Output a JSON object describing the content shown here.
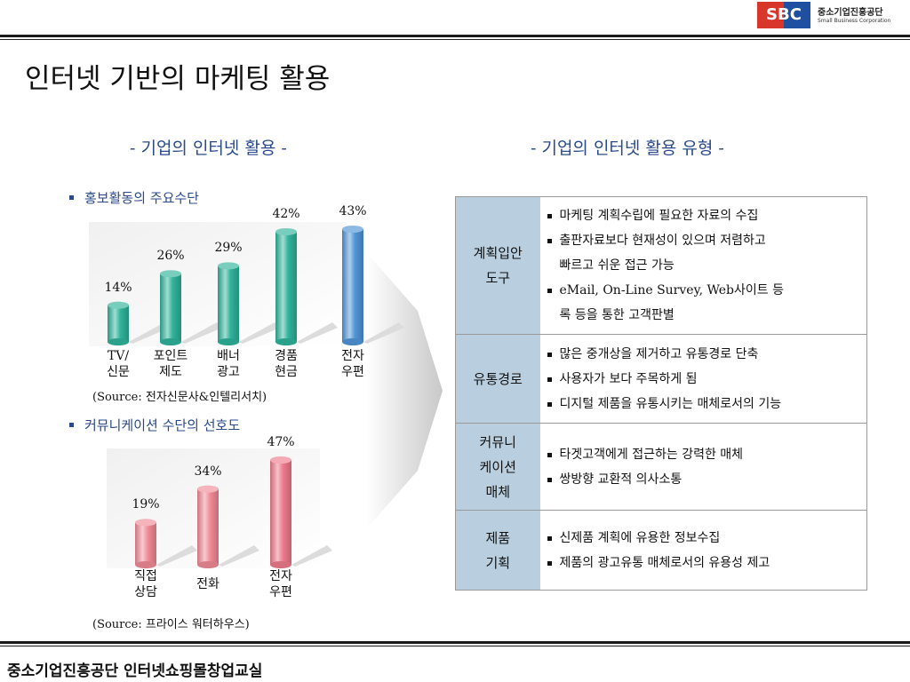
{
  "logo": {
    "abbr": "SBC",
    "name_kr": "중소기업진흥공단",
    "name_en": "Small Business Corporation"
  },
  "page_title": "인터넷 기반의 마케팅 활용",
  "left_section_title": "- 기업의 인터넷 활용 -",
  "right_section_title": "- 기업의 인터넷 활용 유형 -",
  "chart_data": [
    {
      "type": "bar",
      "title": "홍보활동의 주요수단",
      "categories": [
        "TV/ 신문",
        "포인트 제도",
        "배너 광고",
        "경품 현금",
        "전자 우편"
      ],
      "category_lines": [
        [
          "TV/",
          "신문"
        ],
        [
          "포인트",
          "제도"
        ],
        [
          "배너",
          "광고"
        ],
        [
          "경품",
          "현금"
        ],
        [
          "전자",
          "우편"
        ]
      ],
      "values": [
        14,
        26,
        29,
        42,
        43
      ],
      "labels": [
        "14%",
        "26%",
        "29%",
        "42%",
        "43%"
      ],
      "colors": [
        "#2fb39a",
        "#2fb39a",
        "#2fb39a",
        "#2fb39a",
        "#4f95d6"
      ],
      "source": "(Source: 전자신문사&인텔리서치)"
    },
    {
      "type": "bar",
      "title": "커뮤니케이션 수단의 선호도",
      "categories": [
        "직접 상담",
        "전화",
        "전자 우편"
      ],
      "category_lines": [
        [
          "직접",
          "상담"
        ],
        [
          "전화"
        ],
        [
          "전자",
          "우편"
        ]
      ],
      "values": [
        19,
        34,
        47
      ],
      "labels": [
        "19%",
        "34%",
        "47%"
      ],
      "colors": [
        "#f08a96",
        "#f08a96",
        "#ee7a8c"
      ],
      "source": "(Source: 프라이스 워터하우스)"
    }
  ],
  "table": {
    "rows": [
      {
        "category_lines": [
          "계획입안",
          "도구"
        ],
        "items": [
          [
            "마케팅 계획수립에 필요한 자료의 수집"
          ],
          [
            "출판자료보다 현재성이 있으며 저렴하고",
            "빠르고 쉬운 접근 가능"
          ],
          [
            "eMail, On-Line Survey, Web사이트 등",
            "록 등을 통한 고객판별"
          ]
        ]
      },
      {
        "category_lines": [
          "유통경로"
        ],
        "items": [
          [
            "많은 중개상을 제거하고 유통경로 단축"
          ],
          [
            "사용자가 보다 주목하게 됨"
          ],
          [
            "디지털 제품을 유통시키는 매체로서의 기능"
          ]
        ]
      },
      {
        "category_lines": [
          "커뮤니",
          "케이션",
          "매체"
        ],
        "items": [
          [
            "타겟고객에게 접근하는 강력한 매체"
          ],
          [
            "쌍방향 교환적 의사소통"
          ]
        ]
      },
      {
        "category_lines": [
          "제품",
          "기획"
        ],
        "items": [
          [
            "신제품 계획에 유용한 정보수집"
          ],
          [
            "제품의 광고유통 매체로서의 유용성 제고"
          ]
        ]
      }
    ]
  },
  "footer": "중소기업진흥공단 인터넷쇼핑몰창업교실"
}
